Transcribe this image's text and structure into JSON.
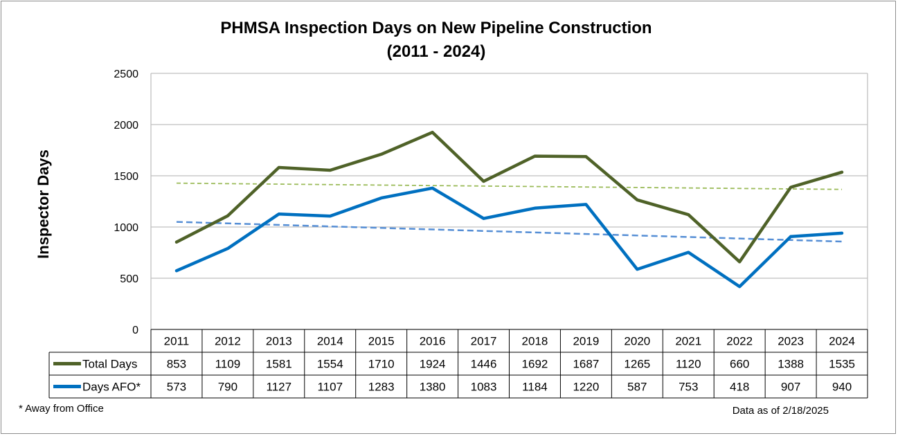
{
  "chart_data": {
    "type": "line",
    "title": "PHMSA Inspection Days on New Pipeline Construction",
    "subtitle": "(2011 - 2024)",
    "xlabel": "",
    "ylabel": "Inspector Days",
    "ylim": [
      0,
      2500
    ],
    "yticks": [
      0,
      500,
      1000,
      1500,
      2000,
      2500
    ],
    "grid": true,
    "categories": [
      "2011",
      "2012",
      "2013",
      "2014",
      "2015",
      "2016",
      "2017",
      "2018",
      "2019",
      "2020",
      "2021",
      "2022",
      "2023",
      "2024"
    ],
    "series": [
      {
        "name": "Total Days",
        "color": "#4f6228",
        "values": [
          853,
          1109,
          1581,
          1554,
          1710,
          1924,
          1446,
          1692,
          1687,
          1265,
          1120,
          660,
          1388,
          1535
        ],
        "trendline": [
          1428,
          1367
        ]
      },
      {
        "name": "Days AFO*",
        "color": "#0070c0",
        "values": [
          573,
          790,
          1127,
          1107,
          1283,
          1380,
          1083,
          1184,
          1220,
          587,
          753,
          418,
          907,
          940
        ],
        "trendline": [
          1050,
          858
        ]
      }
    ],
    "legend": "data-table",
    "trend_colors": [
      "#9bbb59",
      "#558ed5"
    ]
  },
  "footnote": "* Away from Office",
  "data_note": "Data as of 2/18/2025"
}
